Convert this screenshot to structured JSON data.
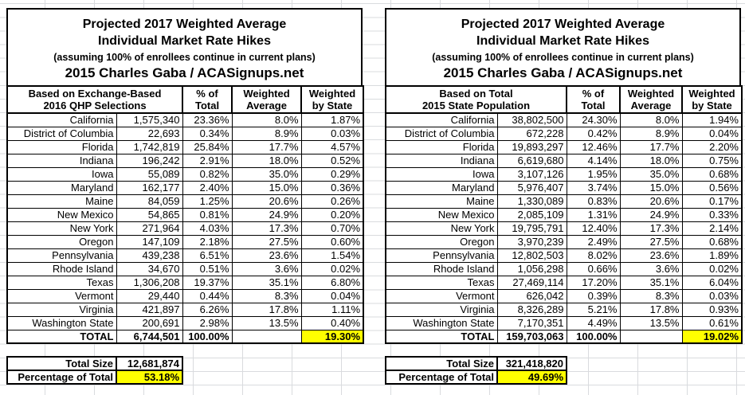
{
  "colors": {
    "left_header_fill": "#9fc5f8",
    "right_header_fill": "#f9cb9c",
    "highlight_fill": "#ffff00",
    "border": "#000000",
    "gridline": "#d9dbde"
  },
  "tables": {
    "left": {
      "title_line1": "Projected 2017 Weighted Average",
      "title_line2": "Individual Market Rate Hikes",
      "title_line3": "(assuming 100% of enrollees continue in current plans)",
      "title_line4": "2015 Charles Gaba / ACASignups.net",
      "header": {
        "basis_line1": "Based on Exchange-Based",
        "basis_line2": "2016 QHP Selections",
        "pct_line1": "% of",
        "pct_line2": "Total",
        "wavg_line1": "Weighted",
        "wavg_line2": "Average",
        "wstate_line1": "Weighted",
        "wstate_line2": "by State"
      },
      "rows": [
        [
          "California",
          "1,575,340",
          "23.36%",
          "8.0%",
          "1.87%"
        ],
        [
          "District of Columbia",
          "22,693",
          "0.34%",
          "8.9%",
          "0.03%"
        ],
        [
          "Florida",
          "1,742,819",
          "25.84%",
          "17.7%",
          "4.57%"
        ],
        [
          "Indiana",
          "196,242",
          "2.91%",
          "18.0%",
          "0.52%"
        ],
        [
          "Iowa",
          "55,089",
          "0.82%",
          "35.0%",
          "0.29%"
        ],
        [
          "Maryland",
          "162,177",
          "2.40%",
          "15.0%",
          "0.36%"
        ],
        [
          "Maine",
          "84,059",
          "1.25%",
          "20.6%",
          "0.26%"
        ],
        [
          "New Mexico",
          "54,865",
          "0.81%",
          "24.9%",
          "0.20%"
        ],
        [
          "New York",
          "271,964",
          "4.03%",
          "17.3%",
          "0.70%"
        ],
        [
          "Oregon",
          "147,109",
          "2.18%",
          "27.5%",
          "0.60%"
        ],
        [
          "Pennsylvania",
          "439,238",
          "6.51%",
          "23.6%",
          "1.54%"
        ],
        [
          "Rhode Island",
          "34,670",
          "0.51%",
          "3.6%",
          "0.02%"
        ],
        [
          "Texas",
          "1,306,208",
          "19.37%",
          "35.1%",
          "6.80%"
        ],
        [
          "Vermont",
          "29,440",
          "0.44%",
          "8.3%",
          "0.04%"
        ],
        [
          "Virginia",
          "421,897",
          "6.26%",
          "17.8%",
          "1.11%"
        ],
        [
          "Washington State",
          "200,691",
          "2.98%",
          "13.5%",
          "0.40%"
        ]
      ],
      "total_row": {
        "label": "TOTAL",
        "value": "6,744,501",
        "pct": "100.00%",
        "wavg": "",
        "wstate": "19.30%"
      },
      "summary": {
        "total_size_label": "Total Size",
        "total_size_value": "12,681,874",
        "pct_label": "Percentage of Total",
        "pct_value": "53.18%"
      }
    },
    "right": {
      "title_line1": "Projected 2017 Weighted Average",
      "title_line2": "Individual Market Rate Hikes",
      "title_line3": "(assuming 100% of enrollees continue in current plans)",
      "title_line4": "2015 Charles Gaba / ACASignups.net",
      "header": {
        "basis_line1": "Based on Total",
        "basis_line2": "2015 State Population",
        "pct_line1": "% of",
        "pct_line2": "Total",
        "wavg_line1": "Weighted",
        "wavg_line2": "Average",
        "wstate_line1": "Weighted",
        "wstate_line2": "by State"
      },
      "rows": [
        [
          "California",
          "38,802,500",
          "24.30%",
          "8.0%",
          "1.94%"
        ],
        [
          "District of Columbia",
          "672,228",
          "0.42%",
          "8.9%",
          "0.04%"
        ],
        [
          "Florida",
          "19,893,297",
          "12.46%",
          "17.7%",
          "2.20%"
        ],
        [
          "Indiana",
          "6,619,680",
          "4.14%",
          "18.0%",
          "0.75%"
        ],
        [
          "Iowa",
          "3,107,126",
          "1.95%",
          "35.0%",
          "0.68%"
        ],
        [
          "Maryland",
          "5,976,407",
          "3.74%",
          "15.0%",
          "0.56%"
        ],
        [
          "Maine",
          "1,330,089",
          "0.83%",
          "20.6%",
          "0.17%"
        ],
        [
          "New Mexico",
          "2,085,109",
          "1.31%",
          "24.9%",
          "0.33%"
        ],
        [
          "New York",
          "19,795,791",
          "12.40%",
          "17.3%",
          "2.14%"
        ],
        [
          "Oregon",
          "3,970,239",
          "2.49%",
          "27.5%",
          "0.68%"
        ],
        [
          "Pennsylvania",
          "12,802,503",
          "8.02%",
          "23.6%",
          "1.89%"
        ],
        [
          "Rhode Island",
          "1,056,298",
          "0.66%",
          "3.6%",
          "0.02%"
        ],
        [
          "Texas",
          "27,469,114",
          "17.20%",
          "35.1%",
          "6.04%"
        ],
        [
          "Vermont",
          "626,042",
          "0.39%",
          "8.3%",
          "0.03%"
        ],
        [
          "Virginia",
          "8,326,289",
          "5.21%",
          "17.8%",
          "0.93%"
        ],
        [
          "Washington State",
          "7,170,351",
          "4.49%",
          "13.5%",
          "0.61%"
        ]
      ],
      "total_row": {
        "label": "TOTAL",
        "value": "159,703,063",
        "pct": "100.00%",
        "wavg": "",
        "wstate": "19.02%"
      },
      "summary": {
        "total_size_label": "Total Size",
        "total_size_value": "321,418,820",
        "pct_label": "Percentage of Total",
        "pct_value": "49.69%"
      }
    }
  }
}
